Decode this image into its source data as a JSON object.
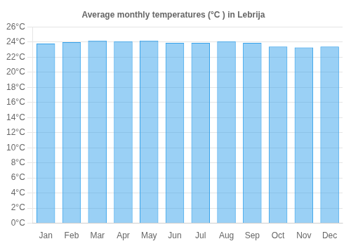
{
  "chart_data": {
    "type": "bar",
    "title": "Average monthly temperatures (°C ) in Lebrija",
    "categories": [
      "Jan",
      "Feb",
      "Mar",
      "Apr",
      "May",
      "Jun",
      "Jul",
      "Aug",
      "Sep",
      "Oct",
      "Nov",
      "Dec"
    ],
    "values": [
      23.8,
      24.0,
      24.2,
      24.1,
      24.2,
      23.9,
      23.9,
      24.1,
      23.9,
      23.4,
      23.3,
      23.4
    ],
    "ylim": [
      0,
      26
    ],
    "yticks": [
      {
        "value": 0,
        "label": "0°C"
      },
      {
        "value": 2,
        "label": "2°C"
      },
      {
        "value": 4,
        "label": "4°C"
      },
      {
        "value": 6,
        "label": "6°C"
      },
      {
        "value": 8,
        "label": "8°C"
      },
      {
        "value": 10,
        "label": "10°C"
      },
      {
        "value": 12,
        "label": "12°C"
      },
      {
        "value": 14,
        "label": "14°C"
      },
      {
        "value": 16,
        "label": "16°C"
      },
      {
        "value": 18,
        "label": "18°C"
      },
      {
        "value": 20,
        "label": "20°C"
      },
      {
        "value": 22,
        "label": "22°C"
      },
      {
        "value": 24,
        "label": "24°C"
      },
      {
        "value": 26,
        "label": "26°C"
      }
    ],
    "grid": true
  }
}
